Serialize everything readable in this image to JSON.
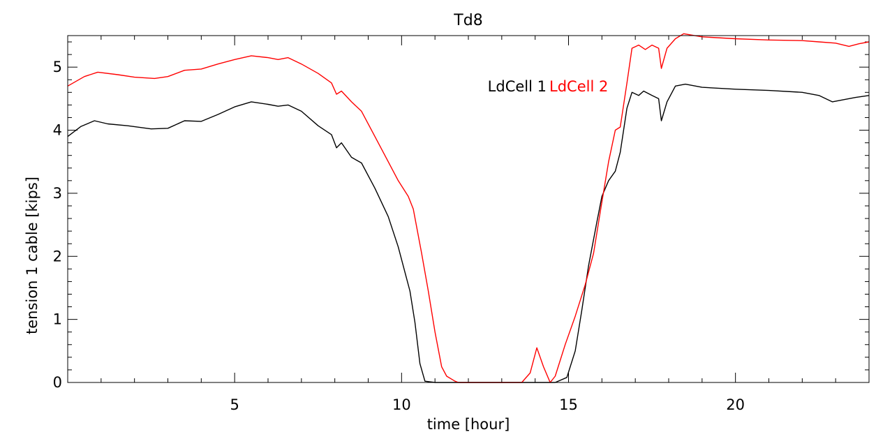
{
  "chart_data": {
    "type": "line",
    "title": "Td8",
    "xlabel": "time [hour]",
    "ylabel": "tension 1 cable [kips]",
    "xlim": [
      0,
      24
    ],
    "ylim": [
      0,
      5.5
    ],
    "xticks": [
      5,
      10,
      15,
      20
    ],
    "yticks": [
      0,
      1,
      2,
      3,
      4,
      5
    ],
    "grid": false,
    "legend_position": "inside-top-right",
    "series": [
      {
        "name": "LdCell 1",
        "color": "#000000",
        "points": [
          [
            0,
            3.9
          ],
          [
            0.4,
            4.06
          ],
          [
            0.8,
            4.15
          ],
          [
            1.2,
            4.1
          ],
          [
            1.8,
            4.07
          ],
          [
            2.5,
            4.02
          ],
          [
            3.0,
            4.03
          ],
          [
            3.5,
            4.15
          ],
          [
            4.0,
            4.14
          ],
          [
            4.5,
            4.25
          ],
          [
            5.0,
            4.37
          ],
          [
            5.5,
            4.45
          ],
          [
            6.0,
            4.41
          ],
          [
            6.3,
            4.38
          ],
          [
            6.6,
            4.4
          ],
          [
            7.0,
            4.3
          ],
          [
            7.5,
            4.07
          ],
          [
            7.9,
            3.93
          ],
          [
            8.05,
            3.72
          ],
          [
            8.2,
            3.8
          ],
          [
            8.5,
            3.57
          ],
          [
            8.8,
            3.48
          ],
          [
            9.2,
            3.08
          ],
          [
            9.6,
            2.63
          ],
          [
            9.9,
            2.15
          ],
          [
            10.1,
            1.75
          ],
          [
            10.25,
            1.45
          ],
          [
            10.4,
            0.95
          ],
          [
            10.55,
            0.3
          ],
          [
            10.7,
            0.02
          ],
          [
            11.0,
            0
          ],
          [
            14.6,
            0
          ],
          [
            14.95,
            0.08
          ],
          [
            15.2,
            0.5
          ],
          [
            15.4,
            1.15
          ],
          [
            15.6,
            1.85
          ],
          [
            15.85,
            2.55
          ],
          [
            16.0,
            2.95
          ],
          [
            16.2,
            3.2
          ],
          [
            16.4,
            3.35
          ],
          [
            16.55,
            3.65
          ],
          [
            16.75,
            4.35
          ],
          [
            16.9,
            4.6
          ],
          [
            17.1,
            4.55
          ],
          [
            17.25,
            4.62
          ],
          [
            17.5,
            4.55
          ],
          [
            17.7,
            4.5
          ],
          [
            17.78,
            4.15
          ],
          [
            17.95,
            4.45
          ],
          [
            18.2,
            4.7
          ],
          [
            18.5,
            4.73
          ],
          [
            19.0,
            4.68
          ],
          [
            20.0,
            4.65
          ],
          [
            21.0,
            4.63
          ],
          [
            22.0,
            4.6
          ],
          [
            22.5,
            4.55
          ],
          [
            22.9,
            4.45
          ],
          [
            23.2,
            4.48
          ],
          [
            23.6,
            4.52
          ],
          [
            24.0,
            4.55
          ]
        ]
      },
      {
        "name": "LdCell 2",
        "color": "#ff0000",
        "points": [
          [
            0,
            4.7
          ],
          [
            0.5,
            4.85
          ],
          [
            0.9,
            4.92
          ],
          [
            1.5,
            4.88
          ],
          [
            2.0,
            4.84
          ],
          [
            2.6,
            4.82
          ],
          [
            3.0,
            4.85
          ],
          [
            3.5,
            4.95
          ],
          [
            4.0,
            4.97
          ],
          [
            4.5,
            5.05
          ],
          [
            5.0,
            5.12
          ],
          [
            5.5,
            5.18
          ],
          [
            6.0,
            5.15
          ],
          [
            6.3,
            5.12
          ],
          [
            6.6,
            5.15
          ],
          [
            7.0,
            5.05
          ],
          [
            7.5,
            4.9
          ],
          [
            7.9,
            4.75
          ],
          [
            8.05,
            4.57
          ],
          [
            8.2,
            4.62
          ],
          [
            8.5,
            4.45
          ],
          [
            8.8,
            4.3
          ],
          [
            9.2,
            3.9
          ],
          [
            9.6,
            3.5
          ],
          [
            9.9,
            3.2
          ],
          [
            10.2,
            2.95
          ],
          [
            10.35,
            2.75
          ],
          [
            10.6,
            2.05
          ],
          [
            10.8,
            1.45
          ],
          [
            11.0,
            0.8
          ],
          [
            11.2,
            0.25
          ],
          [
            11.35,
            0.1
          ],
          [
            11.6,
            0.02
          ],
          [
            11.7,
            0
          ],
          [
            13.6,
            0
          ],
          [
            13.85,
            0.15
          ],
          [
            14.05,
            0.55
          ],
          [
            14.25,
            0.25
          ],
          [
            14.45,
            0.0
          ],
          [
            14.6,
            0.1
          ],
          [
            14.9,
            0.6
          ],
          [
            15.2,
            1.05
          ],
          [
            15.5,
            1.55
          ],
          [
            15.75,
            2.05
          ],
          [
            15.95,
            2.7
          ],
          [
            16.2,
            3.5
          ],
          [
            16.4,
            4.0
          ],
          [
            16.55,
            4.05
          ],
          [
            16.75,
            4.75
          ],
          [
            16.9,
            5.3
          ],
          [
            17.1,
            5.35
          ],
          [
            17.3,
            5.28
          ],
          [
            17.5,
            5.35
          ],
          [
            17.7,
            5.3
          ],
          [
            17.78,
            4.98
          ],
          [
            17.95,
            5.3
          ],
          [
            18.2,
            5.45
          ],
          [
            18.45,
            5.53
          ],
          [
            19.0,
            5.48
          ],
          [
            20.0,
            5.45
          ],
          [
            21.0,
            5.43
          ],
          [
            22.0,
            5.42
          ],
          [
            22.5,
            5.4
          ],
          [
            23.0,
            5.38
          ],
          [
            23.4,
            5.33
          ],
          [
            23.7,
            5.37
          ],
          [
            24.0,
            5.4
          ]
        ]
      }
    ]
  }
}
